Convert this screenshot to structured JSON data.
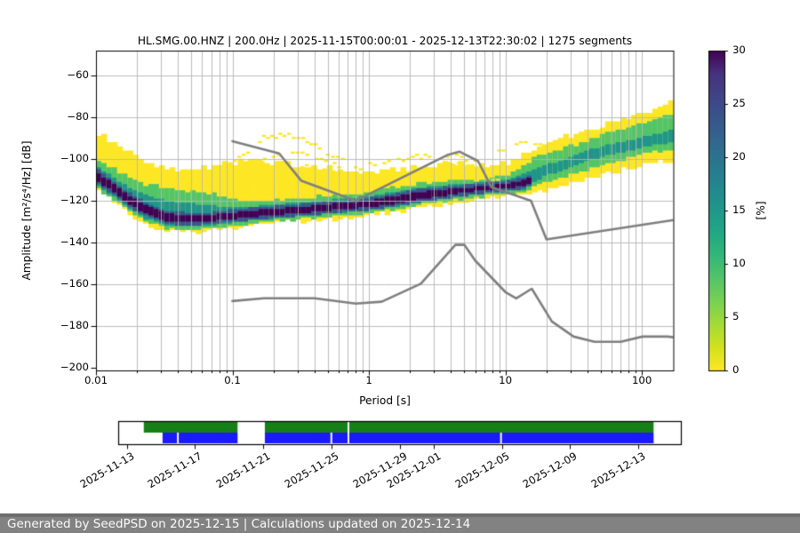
{
  "header": {
    "title": "HL.SMG.00.HNZ | 200.0Hz | 2025-11-15T00:00:01 - 2025-12-13T22:30:02 | 1275 segments"
  },
  "footer": {
    "text": "Generated by SeedPSD on 2025-12-15 | Calculations updated on 2025-12-14"
  },
  "colors": {
    "frame": "#000000",
    "grid": "#b5b5b5",
    "noise_model_line": "#7f7f7f",
    "band_yellow": "#fde725",
    "band_green": "#52c569",
    "band_teal": "#1f958b",
    "band_blue": "#39568c",
    "band_dark": "#440154",
    "timeline_green": "#168016",
    "timeline_blue": "#1a1aff",
    "footer_bg": "#828282",
    "footer_text": "#fbfbfb"
  },
  "chart_data": {
    "type": "heatmap",
    "title": "HL.SMG.00.HNZ | 200.0Hz | 2025-11-15T00:00:01 - 2025-12-13T22:30:02 | 1275 segments",
    "xlabel": "Period [s]",
    "ylabel": "Amplitude [m²/s⁴/Hz] [dB]",
    "xscale": "log",
    "xlim": [
      0.01,
      170
    ],
    "ylim": [
      -201,
      -48
    ],
    "grid": true,
    "x_ticks": [
      {
        "v": 0.01,
        "label": "0.01"
      },
      {
        "v": 0.1,
        "label": "0.1"
      },
      {
        "v": 1,
        "label": "1"
      },
      {
        "v": 10,
        "label": "10"
      },
      {
        "v": 100,
        "label": "100"
      }
    ],
    "y_ticks": [
      {
        "v": -60,
        "label": "−60"
      },
      {
        "v": -80,
        "label": "−80"
      },
      {
        "v": -100,
        "label": "−100"
      },
      {
        "v": -120,
        "label": "−120"
      },
      {
        "v": -140,
        "label": "−140"
      },
      {
        "v": -160,
        "label": "−160"
      },
      {
        "v": -180,
        "label": "−180"
      },
      {
        "v": -200,
        "label": "−200"
      }
    ],
    "colorbar": {
      "label": "[%]",
      "min": 0,
      "max": 30,
      "ticks": [
        0,
        5,
        10,
        15,
        20,
        25,
        30
      ],
      "colormap": "viridis_r",
      "gradient_bottom_to_top": [
        "#fde725",
        "#d2e21b",
        "#a5db36",
        "#7ad151",
        "#54c568",
        "#35b779",
        "#22a884",
        "#1f988b",
        "#23888e",
        "#2a788e",
        "#31688e",
        "#39568c",
        "#414487",
        "#46327e",
        "#440154"
      ]
    },
    "psd_distribution": {
      "comment": "columns: [period_s, yellowTop, yellowBot, greenTop, greenBot, tealTop, tealBot, darkTop, darkBot] in dB",
      "columns": [
        [
          0.01,
          -88,
          -114,
          -100,
          -113.5,
          -103,
          -112.5,
          -106,
          -110
        ],
        [
          0.013,
          -92,
          -119,
          -104,
          -118.5,
          -108,
          -117.5,
          -111,
          -115
        ],
        [
          0.017,
          -96,
          -125,
          -108,
          -124,
          -113,
          -123,
          -117,
          -121
        ],
        [
          0.023,
          -101,
          -131,
          -112,
          -130,
          -117,
          -128.5,
          -122,
          -126
        ],
        [
          0.032,
          -104,
          -134,
          -114,
          -133,
          -120,
          -131.5,
          -126,
          -129.5
        ],
        [
          0.045,
          -105,
          -135,
          -115,
          -134,
          -121,
          -132.5,
          -127,
          -130.5
        ],
        [
          0.065,
          -104,
          -134.5,
          -116,
          -133.5,
          -122,
          -132,
          -127,
          -130
        ],
        [
          0.09,
          -102,
          -133.5,
          -118,
          -132.5,
          -123,
          -131,
          -126,
          -129
        ],
        [
          0.13,
          -101,
          -132,
          -120,
          -131,
          -123,
          -129.5,
          -125,
          -128
        ],
        [
          0.2,
          -102,
          -131,
          -120,
          -130,
          -122,
          -128.5,
          -124,
          -127
        ],
        [
          0.3,
          -103,
          -130,
          -119,
          -129,
          -121,
          -127.5,
          -123,
          -126
        ],
        [
          0.45,
          -104,
          -129,
          -118,
          -128,
          -120,
          -126.5,
          -122,
          -125
        ],
        [
          0.7,
          -105,
          -128,
          -117,
          -127,
          -119,
          -125.5,
          -121,
          -124
        ],
        [
          1.0,
          -105,
          -127,
          -116,
          -126,
          -118,
          -124.5,
          -120,
          -123
        ],
        [
          1.5,
          -105,
          -125.5,
          -114,
          -124.5,
          -116,
          -123,
          -118,
          -121.5
        ],
        [
          2.2,
          -104,
          -123.5,
          -112,
          -122.5,
          -114,
          -121,
          -116,
          -119.5
        ],
        [
          3.2,
          -103,
          -122,
          -111,
          -121,
          -113,
          -119.5,
          -115,
          -118
        ],
        [
          4.7,
          -102,
          -120.5,
          -110,
          -119.5,
          -112,
          -118,
          -114,
          -116.5
        ],
        [
          7.0,
          -103,
          -119,
          -110,
          -118,
          -111,
          -116.5,
          -113,
          -115
        ],
        [
          10,
          -102,
          -118,
          -108,
          -117,
          -110,
          -115.5,
          -112,
          -114
        ],
        [
          14,
          -97,
          -117,
          -103,
          -115.5,
          -107,
          -114.5,
          -110,
          -113
        ],
        [
          16,
          -95,
          -116,
          -100,
          -113,
          -105,
          -111,
          -108,
          -110.5
        ],
        [
          20,
          -93,
          -114.5,
          -98,
          -111,
          -103,
          -108,
          null,
          null
        ],
        [
          30,
          -89,
          -112,
          -94,
          -108,
          -99,
          -104,
          null,
          null
        ],
        [
          45,
          -85,
          -109,
          -90,
          -104,
          -95,
          -100,
          null,
          null
        ],
        [
          70,
          -81,
          -106,
          -86,
          -101,
          -92,
          -97,
          null,
          null
        ],
        [
          110,
          -77,
          -102,
          -82,
          -97,
          -89,
          -94,
          null,
          null
        ],
        [
          170,
          -73,
          -101,
          -78,
          -96,
          -86,
          -92,
          null,
          null
        ]
      ]
    },
    "outlier_streaks": [
      [
        [
          0.09,
          -104
        ],
        [
          0.13,
          -96
        ],
        [
          0.17,
          -90
        ],
        [
          0.24,
          -88.5
        ],
        [
          0.33,
          -91
        ],
        [
          0.5,
          -97
        ],
        [
          0.7,
          -102.5
        ]
      ],
      [
        [
          0.12,
          -105
        ],
        [
          0.2,
          -98.5
        ],
        [
          0.3,
          -96.5
        ],
        [
          0.45,
          -100
        ],
        [
          0.65,
          -104.5
        ]
      ],
      [
        [
          0.22,
          -107
        ],
        [
          0.35,
          -104
        ],
        [
          0.55,
          -106.5
        ],
        [
          0.85,
          -109.5
        ]
      ],
      [
        [
          0.8,
          -104.5
        ],
        [
          1.3,
          -101.5
        ],
        [
          2.1,
          -99
        ],
        [
          3.2,
          -98
        ],
        [
          4.8,
          -99.5
        ],
        [
          6.5,
          -102.5
        ]
      ],
      [
        [
          1.6,
          -107.5
        ],
        [
          2.6,
          -104.5
        ],
        [
          4.2,
          -102
        ],
        [
          6.2,
          -104
        ],
        [
          8.5,
          -107
        ]
      ],
      [
        [
          3.2,
          -110
        ],
        [
          5,
          -106.5
        ],
        [
          7.5,
          -108.5
        ],
        [
          9.5,
          -110.5
        ]
      ],
      [
        [
          9,
          -96.5
        ],
        [
          13,
          -92.5
        ],
        [
          18,
          -93.5
        ],
        [
          24,
          -96.5
        ]
      ],
      [
        [
          0.35,
          -111
        ],
        [
          0.5,
          -109.5
        ],
        [
          0.75,
          -111.5
        ],
        [
          1.1,
          -113
        ]
      ],
      [
        [
          0.1,
          -113
        ],
        [
          0.16,
          -111
        ],
        [
          0.28,
          -113
        ],
        [
          0.45,
          -115
        ]
      ]
    ],
    "noise_models": {
      "high_noise_model": [
        [
          0.1,
          -91.5
        ],
        [
          0.22,
          -97.4
        ],
        [
          0.32,
          -110.5
        ],
        [
          0.8,
          -120
        ],
        [
          3.8,
          -98
        ],
        [
          4.6,
          -96.5
        ],
        [
          6.3,
          -101
        ],
        [
          7.9,
          -113.5
        ],
        [
          15.4,
          -120
        ],
        [
          20,
          -138.5
        ],
        [
          170,
          -129.3
        ]
      ],
      "low_noise_model": [
        [
          0.1,
          -168
        ],
        [
          0.17,
          -166.7
        ],
        [
          0.4,
          -166.7
        ],
        [
          0.8,
          -169.2
        ],
        [
          1.24,
          -168.3
        ],
        [
          2.4,
          -159.7
        ],
        [
          4.3,
          -141.1
        ],
        [
          5,
          -141.1
        ],
        [
          6,
          -148.6
        ],
        [
          10,
          -163.7
        ],
        [
          12,
          -166.7
        ],
        [
          15.6,
          -162.1
        ],
        [
          21.9,
          -177.8
        ],
        [
          31.6,
          -185
        ],
        [
          45,
          -187.5
        ],
        [
          70,
          -187.5
        ],
        [
          101,
          -185
        ],
        [
          154,
          -185
        ],
        [
          170,
          -185.3
        ]
      ]
    }
  },
  "timeline": {
    "range_days": [
      -0.5,
      32.5
    ],
    "ticks": [
      {
        "day": 0,
        "label": "2025-11-13"
      },
      {
        "day": 4,
        "label": "2025-11-17"
      },
      {
        "day": 8,
        "label": "2025-11-21"
      },
      {
        "day": 12,
        "label": "2025-11-25"
      },
      {
        "day": 16,
        "label": "2025-11-29"
      },
      {
        "day": 18,
        "label": "2025-12-01"
      },
      {
        "day": 22,
        "label": "2025-12-05"
      },
      {
        "day": 26,
        "label": "2025-12-09"
      },
      {
        "day": 30,
        "label": "2025-12-13"
      }
    ],
    "green_segments": [
      [
        1.0,
        6.5
      ],
      [
        8.1,
        12.95
      ],
      [
        13.05,
        30.9
      ]
    ],
    "blue_segments": [
      [
        2.1,
        2.95
      ],
      [
        3.05,
        6.5
      ],
      [
        8.1,
        11.95
      ],
      [
        12.05,
        12.95
      ],
      [
        13.05,
        21.9
      ],
      [
        22.0,
        30.9
      ]
    ]
  }
}
